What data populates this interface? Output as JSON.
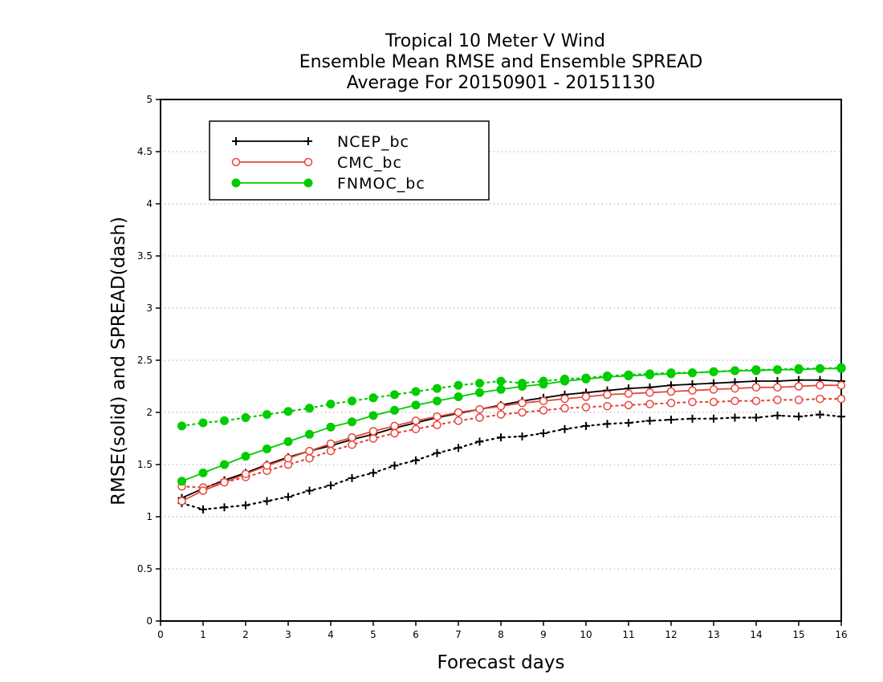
{
  "chart_data": {
    "type": "line",
    "title": [
      "Tropical 10 Meter V Wind",
      "Ensemble Mean RMSE and Ensemble SPREAD",
      "Average For 20150901 - 20151130"
    ],
    "xlabel": "Forecast days",
    "ylabel": "RMSE(solid) and SPREAD(dash)",
    "xlim": [
      0,
      16
    ],
    "ylim": [
      0,
      5
    ],
    "x_ticks": [
      "0",
      "1",
      "2",
      "3",
      "4",
      "5",
      "6",
      "7",
      "8",
      "9",
      "10",
      "11",
      "12",
      "13",
      "14",
      "15",
      "16"
    ],
    "y_ticks": [
      "0",
      "0.5",
      "1",
      "1.5",
      "2",
      "2.5",
      "3",
      "3.5",
      "4",
      "4.5",
      "5"
    ],
    "grid": "horizontal dotted",
    "legend_position": "top-left",
    "x": [
      0.5,
      1,
      1.5,
      2,
      2.5,
      3,
      3.5,
      4,
      4.5,
      5,
      5.5,
      6,
      6.5,
      7,
      7.5,
      8,
      8.5,
      9,
      9.5,
      10,
      10.5,
      11,
      11.5,
      12,
      12.5,
      13,
      13.5,
      14,
      14.5,
      15,
      15.5,
      16
    ],
    "series": [
      {
        "name": "NCEP_bc",
        "color": "#000000",
        "marker": "plus",
        "rmse": [
          1.18,
          1.27,
          1.35,
          1.42,
          1.5,
          1.57,
          1.63,
          1.68,
          1.74,
          1.79,
          1.85,
          1.9,
          1.95,
          1.99,
          2.03,
          2.07,
          2.11,
          2.14,
          2.17,
          2.19,
          2.21,
          2.23,
          2.24,
          2.26,
          2.27,
          2.28,
          2.29,
          2.3,
          2.3,
          2.31,
          2.31,
          2.3
        ],
        "spread": [
          1.13,
          1.07,
          1.09,
          1.11,
          1.15,
          1.19,
          1.25,
          1.3,
          1.37,
          1.42,
          1.49,
          1.54,
          1.61,
          1.66,
          1.72,
          1.76,
          1.77,
          1.8,
          1.84,
          1.87,
          1.89,
          1.9,
          1.92,
          1.93,
          1.94,
          1.94,
          1.95,
          1.95,
          1.97,
          1.96,
          1.98,
          1.96
        ]
      },
      {
        "name": "CMC_bc",
        "color": "#e8453c",
        "marker": "open-circle",
        "rmse": [
          1.15,
          1.25,
          1.33,
          1.41,
          1.49,
          1.56,
          1.63,
          1.7,
          1.76,
          1.82,
          1.87,
          1.92,
          1.96,
          2.0,
          2.03,
          2.06,
          2.09,
          2.11,
          2.13,
          2.15,
          2.17,
          2.18,
          2.19,
          2.2,
          2.21,
          2.22,
          2.23,
          2.24,
          2.24,
          2.25,
          2.26,
          2.26
        ],
        "spread": [
          1.29,
          1.28,
          1.33,
          1.38,
          1.44,
          1.5,
          1.56,
          1.63,
          1.69,
          1.75,
          1.8,
          1.84,
          1.88,
          1.92,
          1.95,
          1.98,
          2.0,
          2.02,
          2.04,
          2.05,
          2.06,
          2.07,
          2.08,
          2.09,
          2.1,
          2.1,
          2.11,
          2.11,
          2.12,
          2.12,
          2.13,
          2.13
        ]
      },
      {
        "name": "FNMOC_bc",
        "color": "#00cc00",
        "marker": "filled-circle",
        "rmse": [
          1.34,
          1.42,
          1.5,
          1.58,
          1.65,
          1.72,
          1.79,
          1.86,
          1.91,
          1.97,
          2.02,
          2.07,
          2.11,
          2.15,
          2.19,
          2.22,
          2.25,
          2.27,
          2.3,
          2.32,
          2.34,
          2.35,
          2.36,
          2.37,
          2.38,
          2.39,
          2.4,
          2.4,
          2.41,
          2.41,
          2.42,
          2.42
        ],
        "spread": [
          1.87,
          1.9,
          1.92,
          1.95,
          1.98,
          2.01,
          2.04,
          2.08,
          2.11,
          2.14,
          2.17,
          2.2,
          2.23,
          2.26,
          2.28,
          2.3,
          2.28,
          2.3,
          2.32,
          2.33,
          2.35,
          2.36,
          2.37,
          2.38,
          2.38,
          2.39,
          2.4,
          2.41,
          2.41,
          2.42,
          2.42,
          2.43
        ]
      }
    ]
  }
}
